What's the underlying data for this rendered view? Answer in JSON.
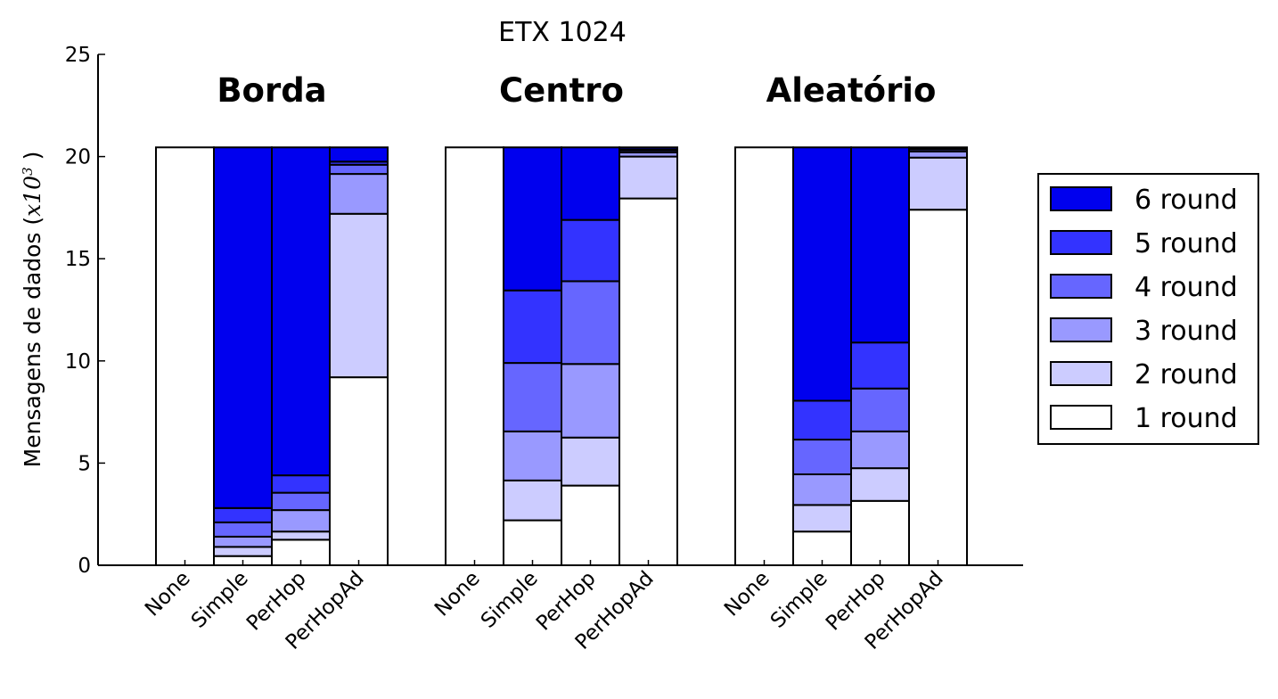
{
  "chart_data": {
    "type": "bar",
    "stacked": true,
    "title": "ETX 1024",
    "ylabel": "Mensagens de dados",
    "ylabel_unit_prefix": "x10",
    "ylabel_unit_exp": "3",
    "ylim": [
      0,
      25
    ],
    "yticks": [
      "0",
      "5",
      "10",
      "15",
      "20",
      "25"
    ],
    "legend_position": "right",
    "colors": {
      "1 round": "#ffffff",
      "2 round": "#ccccff",
      "3 round": "#9999ff",
      "4 round": "#6666ff",
      "5 round": "#3333ff",
      "6 round": "#0000ee"
    },
    "legend": [
      "6 round",
      "5 round",
      "4 round",
      "3 round",
      "2 round",
      "1 round"
    ],
    "groups": [
      {
        "name": "Borda",
        "bars": [
          {
            "label": "None",
            "values": [
              20.45,
              0,
              0,
              0,
              0,
              0
            ]
          },
          {
            "label": "Simple",
            "values": [
              0.45,
              0.45,
              0.5,
              0.7,
              0.7,
              17.65
            ]
          },
          {
            "label": "PerHop",
            "values": [
              1.25,
              0.4,
              1.05,
              0.85,
              0.85,
              16.05
            ]
          },
          {
            "label": "PerHopAd",
            "values": [
              9.2,
              8.0,
              1.95,
              0.45,
              0.15,
              0.7
            ]
          }
        ]
      },
      {
        "name": "Centro",
        "bars": [
          {
            "label": "None",
            "values": [
              20.45,
              0,
              0,
              0,
              0,
              0
            ]
          },
          {
            "label": "Simple",
            "values": [
              2.2,
              1.95,
              2.4,
              3.35,
              3.55,
              7.0
            ]
          },
          {
            "label": "PerHop",
            "values": [
              3.9,
              2.35,
              3.6,
              4.05,
              3.0,
              3.55
            ]
          },
          {
            "label": "PerHopAd",
            "values": [
              17.95,
              2.05,
              0.2,
              0.1,
              0.05,
              0.1
            ]
          }
        ]
      },
      {
        "name": "Aleatório",
        "bars": [
          {
            "label": "None",
            "values": [
              20.45,
              0,
              0,
              0,
              0,
              0
            ]
          },
          {
            "label": "Simple",
            "values": [
              1.65,
              1.3,
              1.5,
              1.7,
              1.9,
              12.4
            ]
          },
          {
            "label": "PerHop",
            "values": [
              3.15,
              1.6,
              1.8,
              2.1,
              2.25,
              9.55
            ]
          },
          {
            "label": "PerHopAd",
            "values": [
              17.4,
              2.55,
              0.3,
              0.1,
              0.05,
              0.05
            ]
          }
        ]
      }
    ]
  }
}
